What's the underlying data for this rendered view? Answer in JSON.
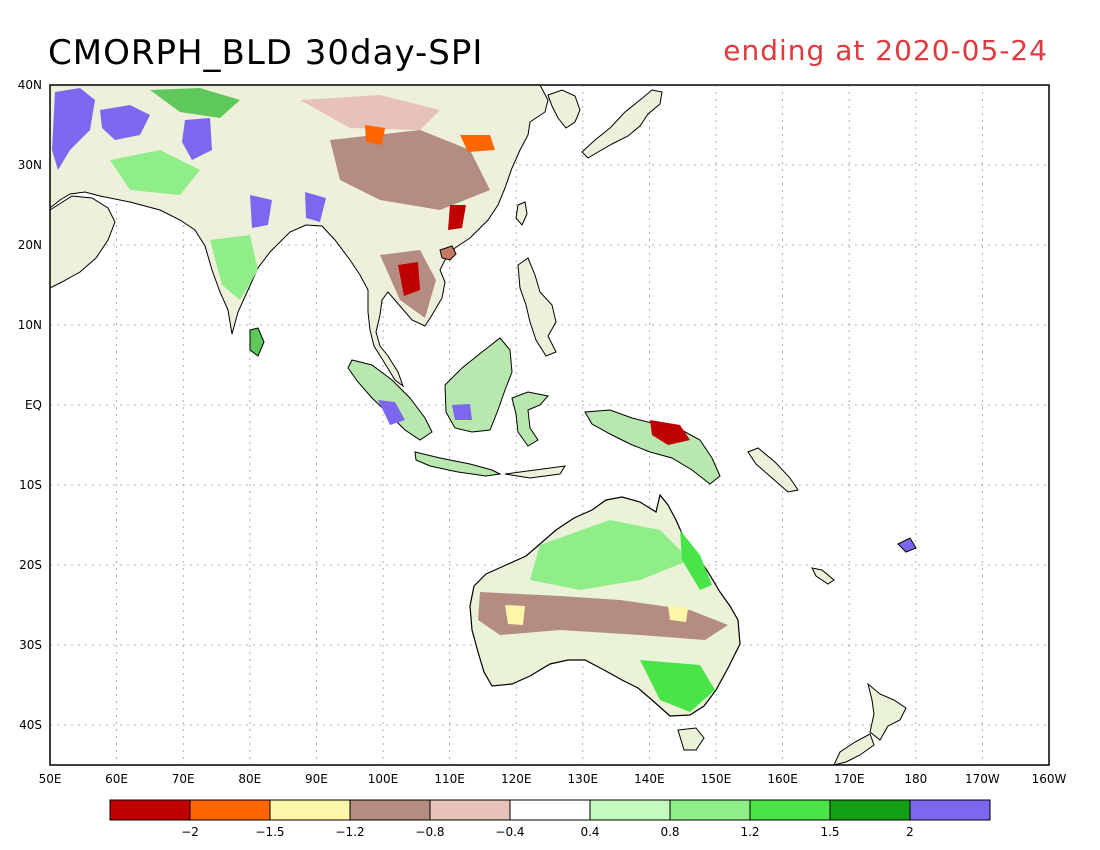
{
  "title": "CMORPH_BLD 30day-SPI",
  "subtitle": "ending at 2020-05-24",
  "subtitle_color": "#e0393e",
  "map": {
    "lon_range": [
      50,
      200
    ],
    "lat_range": [
      -45,
      40
    ],
    "grid": "dotted",
    "lat_labels": [
      "40N",
      "30N",
      "20N",
      "10N",
      "EQ",
      "10S",
      "20S",
      "30S",
      "40S"
    ],
    "lon_labels": [
      "50E",
      "60E",
      "70E",
      "80E",
      "90E",
      "100E",
      "110E",
      "120E",
      "130E",
      "140E",
      "150E",
      "160E",
      "170E",
      "180",
      "170W",
      "160W"
    ]
  },
  "colorbar": {
    "colors": [
      "#c00000",
      "#ff6600",
      "#fff6a8",
      "#b48c82",
      "#e6c2b8",
      "#ffffff",
      "#c4f9c0",
      "#90ee88",
      "#48e448",
      "#14a014",
      "#7b68ee"
    ],
    "labels": [
      "-2",
      "-1.5",
      "-1.2",
      "-0.8",
      "-0.4",
      "0.4",
      "0.8",
      "1.2",
      "1.5",
      "2"
    ]
  }
}
